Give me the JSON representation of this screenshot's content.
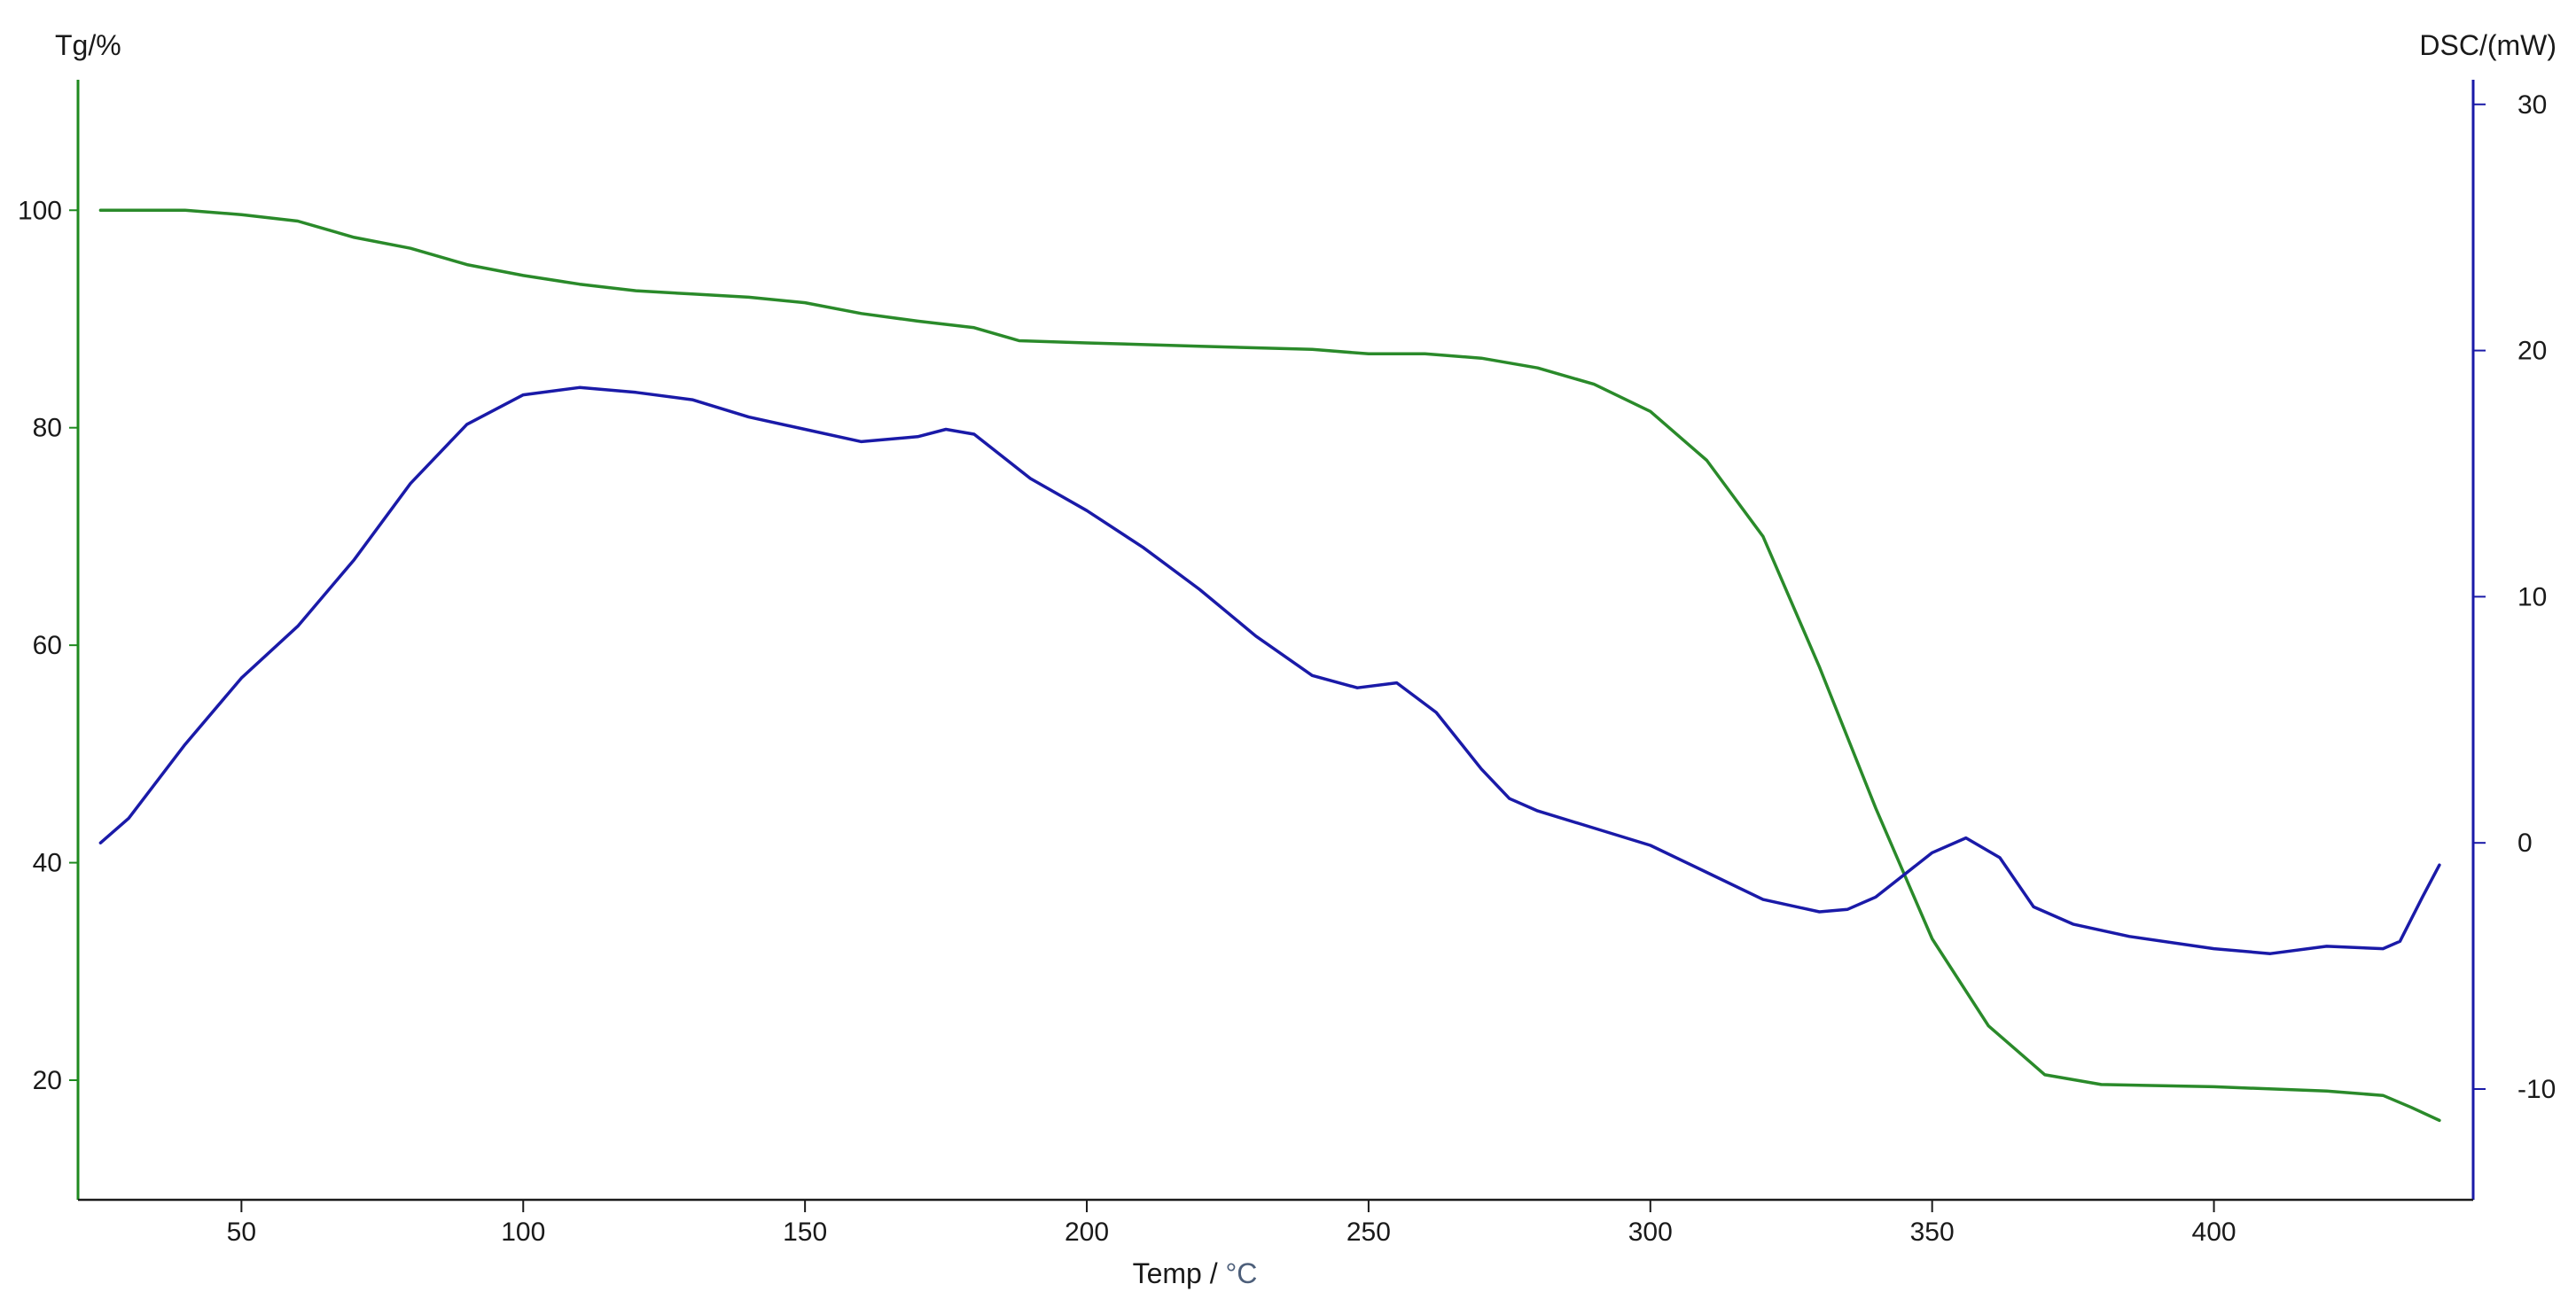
{
  "chart_data": {
    "type": "line",
    "title": "",
    "xlabel_prefix": "Temp / ",
    "xlabel_unit": "°C",
    "ylabel_left": "Tg/%",
    "ylabel_right": "DSC/(mW)",
    "xlim": [
      21,
      446
    ],
    "ylim_left": [
      9,
      112
    ],
    "ylim_right": [
      -14.5,
      31
    ],
    "x_ticks": [
      50,
      100,
      150,
      200,
      250,
      300,
      350,
      400
    ],
    "y_left_ticks": [
      20,
      40,
      60,
      80,
      100
    ],
    "y_right_ticks": [
      -10,
      0,
      10,
      20,
      30
    ],
    "grid": false,
    "colors": {
      "left_axis": "#1f8a1f",
      "right_axis": "#1a1aa8",
      "bottom_axis": "#1a1a1a"
    },
    "series": [
      {
        "axis": "left",
        "color": "#2a8a2a",
        "x": [
          25,
          40,
          50,
          60,
          70,
          80,
          90,
          100,
          110,
          120,
          130,
          140,
          150,
          160,
          170,
          180,
          188,
          200,
          220,
          240,
          250,
          260,
          270,
          280,
          290,
          300,
          310,
          320,
          330,
          340,
          350,
          360,
          370,
          380,
          400,
          420,
          430,
          435,
          440
        ],
        "y": [
          100,
          100,
          99.6,
          99,
          97.5,
          96.5,
          95,
          94,
          93.2,
          92.6,
          92.3,
          92,
          91.5,
          90.5,
          89.8,
          89.2,
          88,
          87.8,
          87.5,
          87.2,
          86.8,
          86.8,
          86.4,
          85.5,
          84,
          81.5,
          77,
          70,
          58,
          45,
          33,
          25,
          20.5,
          19.6,
          19.4,
          19.0,
          18.6,
          17.5,
          16.3
        ]
      },
      {
        "axis": "right",
        "color": "#1a1aa8",
        "x": [
          25,
          30,
          40,
          50,
          60,
          70,
          80,
          90,
          100,
          110,
          120,
          130,
          140,
          150,
          160,
          170,
          175,
          180,
          190,
          200,
          210,
          220,
          230,
          240,
          248,
          255,
          262,
          270,
          275,
          280,
          290,
          300,
          310,
          320,
          330,
          335,
          340,
          350,
          356,
          362,
          368,
          375,
          385,
          400,
          410,
          420,
          430,
          433,
          437,
          440
        ],
        "y": [
          0,
          1,
          4,
          6.7,
          8.8,
          11.5,
          14.6,
          17,
          18.2,
          18.5,
          18.3,
          18,
          17.3,
          16.8,
          16.3,
          16.5,
          16.8,
          16.6,
          14.8,
          13.5,
          12.0,
          10.3,
          8.4,
          6.8,
          6.3,
          6.5,
          5.3,
          3,
          1.8,
          1.3,
          0.6,
          -0.1,
          -1.2,
          -2.3,
          -2.8,
          -2.7,
          -2.2,
          -0.4,
          0.2,
          -0.6,
          -2.6,
          -3.3,
          -3.8,
          -4.3,
          -4.5,
          -4.2,
          -4.3,
          -4.0,
          -2.2,
          -0.9
        ]
      }
    ]
  }
}
